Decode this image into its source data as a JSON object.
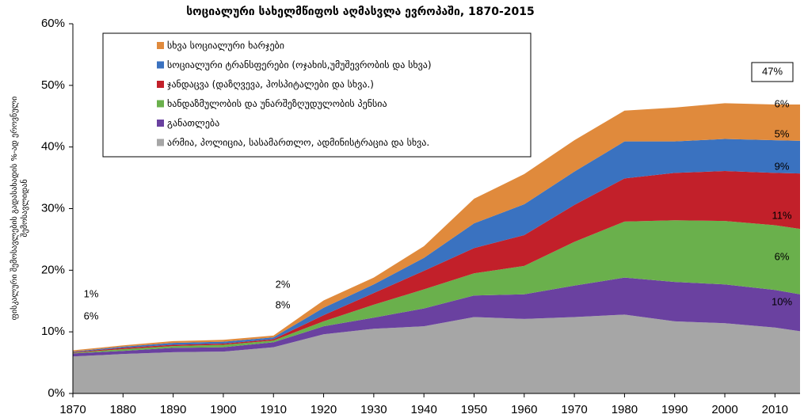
{
  "chart_data": {
    "type": "stacked_area",
    "title": "სოციალური სახელმწიფოს აღმასვლა ევროპაში, 1870-2015",
    "y_label": [
      "ფისკალური შემოსავლების გადასახადის %-ად ეროვნული",
      "შემოსავლიდან"
    ],
    "x": [
      1870,
      1880,
      1890,
      1900,
      1910,
      1920,
      1930,
      1940,
      1950,
      1960,
      1970,
      1980,
      1990,
      2000,
      2010,
      2015
    ],
    "series": [
      {
        "name": "არმია, პოლიცია, სასამართლო, ადმინისტრაცია და სხვა.",
        "color": "#a6a6a6",
        "values": [
          6.0,
          6.4,
          6.7,
          6.8,
          7.5,
          9.6,
          10.5,
          10.9,
          12.4,
          12.1,
          12.4,
          12.8,
          11.7,
          11.4,
          10.7,
          10.1
        ]
      },
      {
        "name": "განათლება",
        "color": "#6a41a0",
        "values": [
          0.5,
          0.5,
          0.7,
          0.7,
          0.8,
          1.3,
          1.8,
          2.9,
          3.5,
          4.0,
          5.1,
          6.0,
          6.4,
          6.3,
          6.1,
          6.0
        ]
      },
      {
        "name": "ხანდაზმულობის და უნარშეზღუდულობის პენსია",
        "color": "#6ab04c",
        "values": [
          0.1,
          0.3,
          0.3,
          0.4,
          0.3,
          0.8,
          2.1,
          3.1,
          3.6,
          4.6,
          7.1,
          9.1,
          10.0,
          10.3,
          10.5,
          10.6
        ]
      },
      {
        "name": "ჯანდაცვა  (დაზღვევა, ჰოსპიტალები და სხვა.)",
        "color": "#c2202a",
        "values": [
          0.1,
          0.2,
          0.2,
          0.2,
          0.2,
          1.0,
          1.9,
          3.0,
          4.1,
          5.0,
          6.0,
          7.0,
          7.7,
          8.1,
          8.5,
          9.0
        ]
      },
      {
        "name": "სოციალური ტრანსფერები (ოჯახის,უმუშევრობის და სხვა)",
        "color": "#3a72c0",
        "values": [
          0.1,
          0.2,
          0.3,
          0.3,
          0.3,
          1.2,
          1.4,
          2.1,
          4.0,
          5.0,
          5.4,
          6.0,
          5.1,
          5.2,
          5.3,
          5.3
        ]
      },
      {
        "name": "სხვა სოციალური ხარჯები",
        "color": "#e08a3c",
        "values": [
          0.2,
          0.2,
          0.3,
          0.3,
          0.3,
          1.2,
          1.1,
          1.9,
          4.0,
          4.9,
          5.1,
          5.0,
          5.5,
          5.8,
          5.8,
          5.9
        ]
      }
    ],
    "annotations": [
      "1%",
      "6%",
      "2%",
      "8%",
      "47%",
      "6%",
      "5%",
      "9%",
      "11%",
      "6%",
      "10%"
    ],
    "xlim": [
      1870,
      2015
    ],
    "xticks": [
      1870,
      1880,
      1890,
      1900,
      1910,
      1920,
      1930,
      1940,
      1950,
      1960,
      1970,
      1980,
      1990,
      2000,
      2010
    ],
    "ylim": [
      0,
      60
    ],
    "yticks": [
      {
        "value": 0,
        "label": "0%"
      },
      {
        "value": 10,
        "label": "10%"
      },
      {
        "value": 20,
        "label": "20%"
      },
      {
        "value": 30,
        "label": "30%"
      },
      {
        "value": 40,
        "label": "40%"
      },
      {
        "value": 50,
        "label": "50%"
      },
      {
        "value": 60,
        "label": "60%"
      }
    ],
    "legend": "upper left"
  }
}
